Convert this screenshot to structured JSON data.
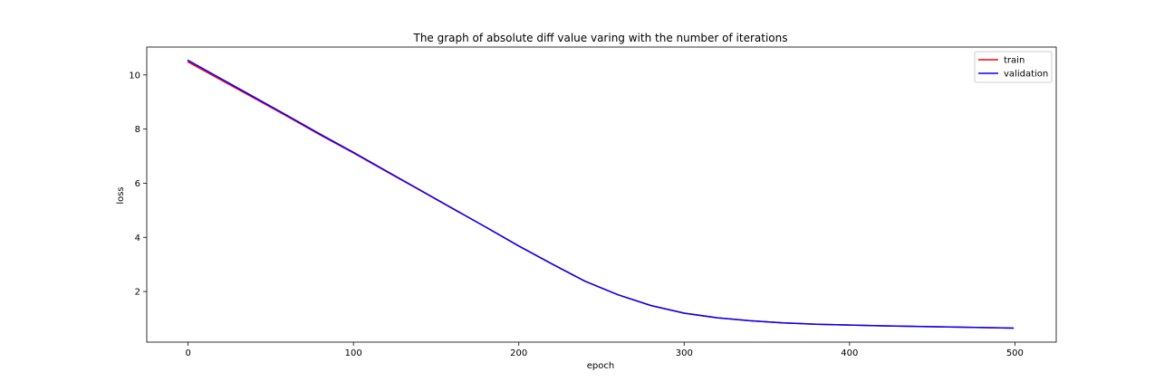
{
  "chart_data": {
    "type": "line",
    "title": "The graph of absolute diff value varing with the number of iterations",
    "xlabel": "epoch",
    "ylabel": "loss",
    "xlim": [
      -25,
      525
    ],
    "ylim": [
      0.13,
      11.03
    ],
    "xticks": [
      0,
      100,
      200,
      300,
      400,
      500
    ],
    "yticks": [
      2,
      4,
      6,
      8,
      10
    ],
    "grid": false,
    "legend_position": "top-right",
    "series": [
      {
        "name": "train",
        "color": "#ff0000",
        "x": [
          0,
          20,
          40,
          60,
          80,
          100,
          120,
          140,
          160,
          180,
          200,
          220,
          240,
          260,
          280,
          300,
          320,
          340,
          360,
          380,
          400,
          420,
          440,
          460,
          480,
          499
        ],
        "y": [
          10.48,
          9.81,
          9.14,
          8.47,
          7.78,
          7.12,
          6.43,
          5.75,
          5.06,
          4.38,
          3.68,
          3.02,
          2.38,
          1.88,
          1.48,
          1.2,
          1.03,
          0.92,
          0.84,
          0.79,
          0.76,
          0.73,
          0.71,
          0.69,
          0.67,
          0.65
        ]
      },
      {
        "name": "validation",
        "color": "#0000ff",
        "x": [
          0,
          20,
          40,
          60,
          80,
          100,
          120,
          140,
          160,
          180,
          200,
          220,
          240,
          260,
          280,
          300,
          320,
          340,
          360,
          380,
          400,
          420,
          440,
          460,
          480,
          499
        ],
        "y": [
          10.54,
          9.86,
          9.18,
          8.5,
          7.81,
          7.14,
          6.45,
          5.76,
          5.07,
          4.38,
          3.68,
          3.02,
          2.38,
          1.88,
          1.48,
          1.2,
          1.03,
          0.92,
          0.84,
          0.79,
          0.76,
          0.73,
          0.71,
          0.69,
          0.67,
          0.65
        ]
      }
    ]
  }
}
